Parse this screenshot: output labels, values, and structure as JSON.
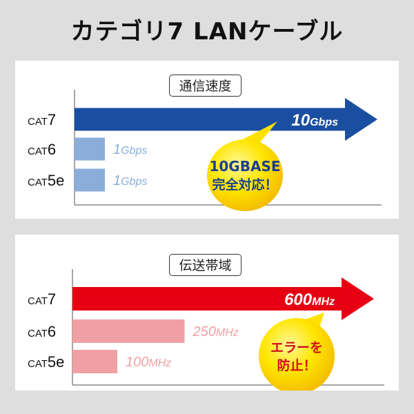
{
  "title": "カテゴリ7 LANケーブル",
  "colors": {
    "background": "#dedede",
    "speed_main": "#1a4ea0",
    "speed_other": "#8badd9",
    "band_main": "#e60012",
    "band_other": "#f0a0a4",
    "bubble": "#ffe600"
  },
  "chart_data": [
    {
      "type": "bar",
      "title": "通信速度",
      "orientation": "horizontal",
      "categories": [
        "CAT7",
        "CAT6",
        "CAT5e"
      ],
      "category_parts": [
        [
          "CAT",
          "7"
        ],
        [
          "CAT",
          "6"
        ],
        [
          "CAT",
          "5e"
        ]
      ],
      "values": [
        10,
        1,
        1
      ],
      "unit": "Gbps",
      "value_labels": [
        [
          "10",
          "Gbps"
        ],
        [
          "1",
          "Gbps"
        ],
        [
          "1",
          "Gbps"
        ]
      ],
      "annotation": {
        "lines": [
          "10GBASE",
          "完全対応！"
        ]
      }
    },
    {
      "type": "bar",
      "title": "伝送帯域",
      "orientation": "horizontal",
      "categories": [
        "CAT7",
        "CAT6",
        "CAT5e"
      ],
      "category_parts": [
        [
          "CAT",
          "7"
        ],
        [
          "CAT",
          "6"
        ],
        [
          "CAT",
          "5e"
        ]
      ],
      "values": [
        600,
        250,
        100
      ],
      "unit": "MHz",
      "value_labels": [
        [
          "600",
          "MHz"
        ],
        [
          "250",
          "MHz"
        ],
        [
          "100",
          "MHz"
        ]
      ],
      "annotation": {
        "lines": [
          "エラーを",
          "防止！"
        ]
      }
    }
  ]
}
